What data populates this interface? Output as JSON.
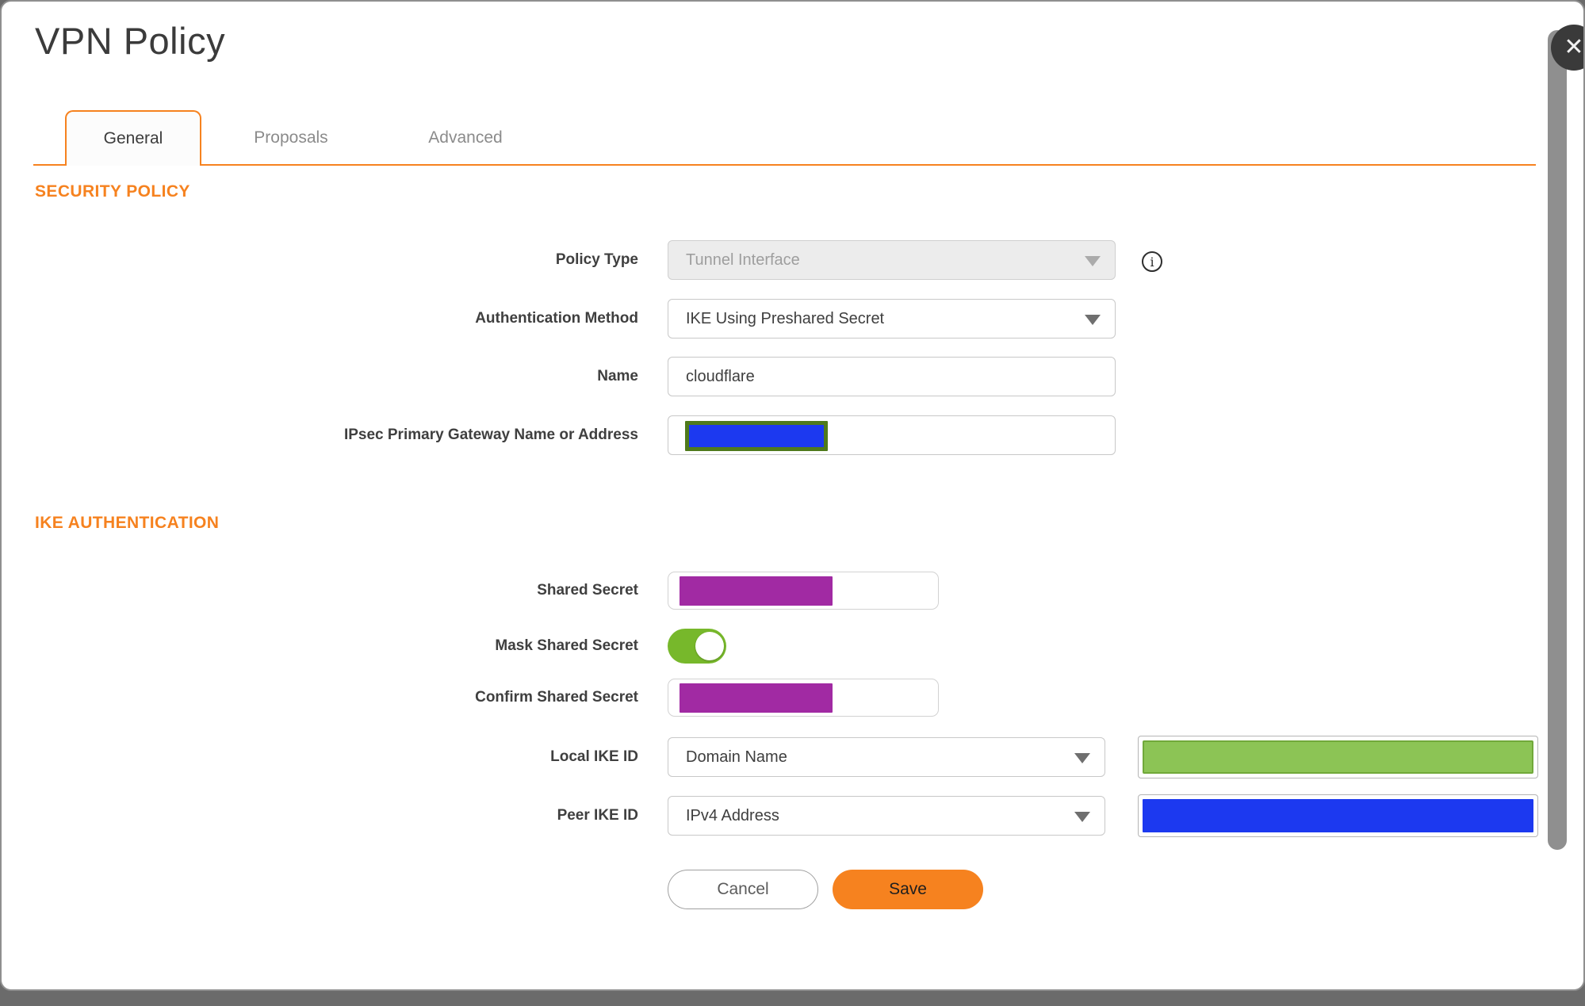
{
  "dialog": {
    "title": "VPN Policy",
    "close_icon": "✕"
  },
  "tabs": [
    {
      "label": "General",
      "active": true
    },
    {
      "label": "Proposals",
      "active": false
    },
    {
      "label": "Advanced",
      "active": false
    }
  ],
  "sections": {
    "security_policy": {
      "heading": "SECURITY POLICY",
      "fields": {
        "policy_type": {
          "label": "Policy Type",
          "value": "Tunnel Interface",
          "disabled": true,
          "info_icon": "i"
        },
        "authentication_method": {
          "label": "Authentication Method",
          "value": "IKE Using Preshared Secret"
        },
        "name": {
          "label": "Name",
          "value": "cloudflare"
        },
        "gateway": {
          "label": "IPsec Primary Gateway Name or Address",
          "value_redacted": true
        }
      }
    },
    "ike_authentication": {
      "heading": "IKE AUTHENTICATION",
      "fields": {
        "shared_secret": {
          "label": "Shared Secret",
          "value_redacted": true
        },
        "mask_shared_secret": {
          "label": "Mask Shared Secret",
          "toggled_on": true
        },
        "confirm_shared_secret": {
          "label": "Confirm Shared Secret",
          "value_redacted": true
        },
        "local_ike_id": {
          "label": "Local IKE ID",
          "value": "Domain Name",
          "id_value_redacted": true
        },
        "peer_ike_id": {
          "label": "Peer IKE ID",
          "value": "IPv4 Address",
          "id_value_redacted": true
        }
      }
    }
  },
  "buttons": {
    "cancel": "Cancel",
    "save": "Save"
  },
  "colors": {
    "accent_orange": "#f6821f",
    "toggle_green": "#77b82b",
    "redaction_purple": "#a12aa3",
    "redaction_blue": "#1c39f0",
    "redaction_green_fill": "#8cc455",
    "redaction_green_border": "#71a93a",
    "redaction_olive_border": "#4f7a1b"
  }
}
